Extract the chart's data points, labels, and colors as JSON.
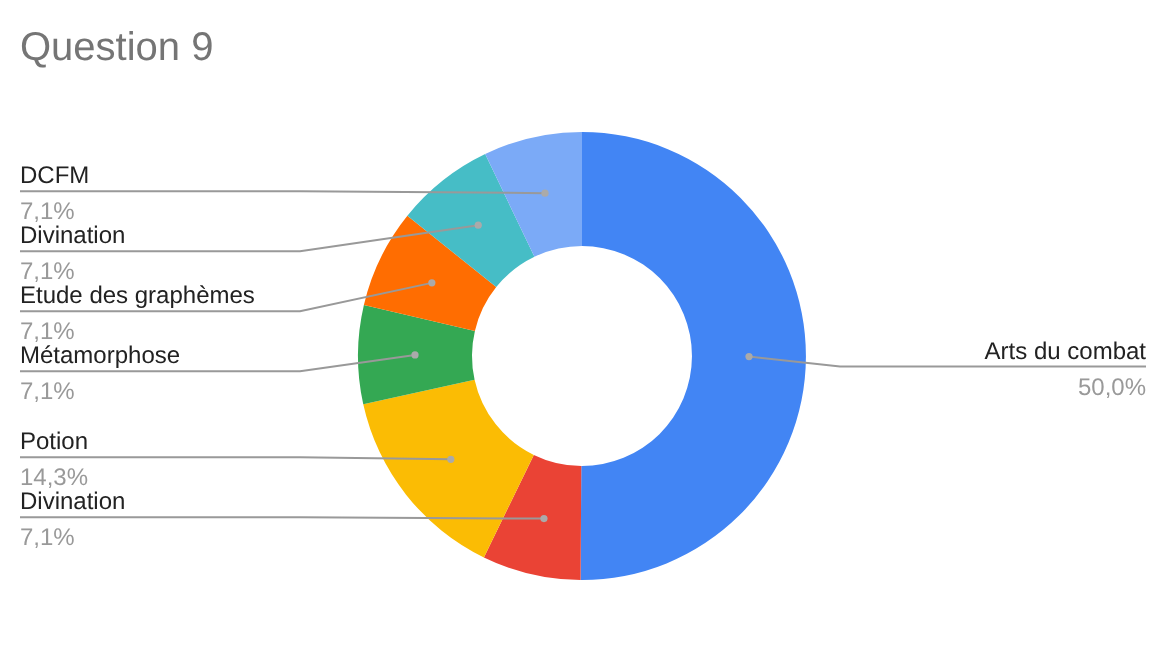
{
  "chart_data": {
    "type": "donut",
    "title": "Question 9",
    "categories": [
      "Arts du combat",
      "Divination",
      "Potion",
      "Métamorphose",
      "Etude des graphèmes",
      "Divination",
      "DCFM"
    ],
    "values": [
      50.0,
      7.1,
      14.3,
      7.1,
      7.1,
      7.1,
      7.1
    ],
    "value_labels": [
      "50,0%",
      "7,1%",
      "14,3%",
      "7,1%",
      "7,1%",
      "7,1%",
      "7,1%"
    ],
    "colors": [
      "#4285f4",
      "#ea4335",
      "#fbbc04",
      "#34a853",
      "#ff6d01",
      "#46bdc6",
      "#7baaf7"
    ]
  }
}
